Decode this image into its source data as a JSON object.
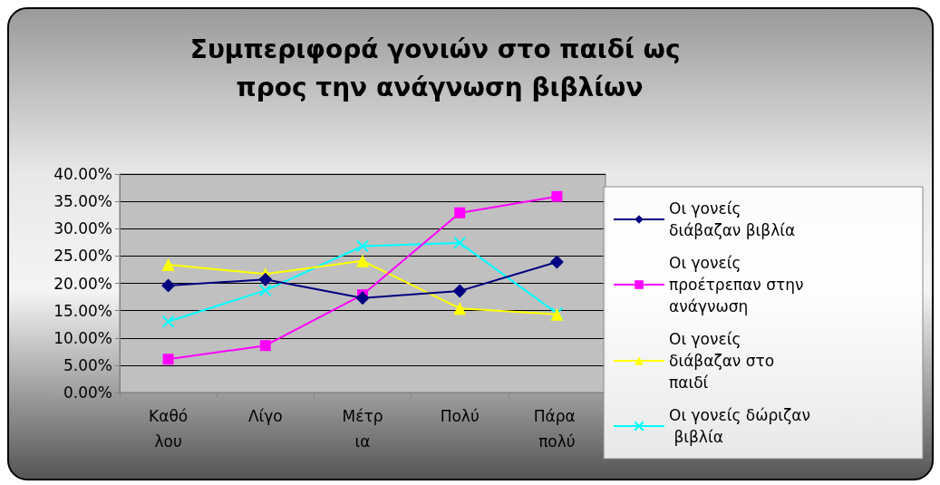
{
  "chart_data": {
    "type": "line",
    "title": "Συμπεριφορά γονιών στο παιδί ως προς την ανάγνωση βιβλίων",
    "categories": [
      "Καθόλου",
      "Λίγο",
      "Μέτρια",
      "Πολύ",
      "Πάρα πολύ"
    ],
    "series": [
      {
        "name": "Οι γονείς διάβαζαν βιβλία",
        "color": "#000080",
        "marker": "diamond",
        "values": [
          19.6,
          20.7,
          17.3,
          18.6,
          23.9
        ]
      },
      {
        "name": "Οι γονείς προέτρεπαν στην ανάγνωση",
        "color": "#ff00ff",
        "marker": "square",
        "values": [
          6.1,
          8.6,
          17.9,
          32.9,
          35.9
        ]
      },
      {
        "name": "Οι γονείς διάβαζαν στο παιδί",
        "color": "#ffff00",
        "marker": "triangle",
        "values": [
          23.4,
          21.7,
          24.1,
          15.4,
          14.3
        ]
      },
      {
        "name": "Οι γονείς δώριζαν βιβλία",
        "color": "#00ffff",
        "marker": "cross",
        "values": [
          13.0,
          18.7,
          26.8,
          27.4,
          14.5
        ]
      }
    ],
    "ylim": [
      0,
      40
    ],
    "yticks": [
      {
        "value": 0,
        "label": "0.00%"
      },
      {
        "value": 5,
        "label": "5.00%"
      },
      {
        "value": 10,
        "label": "10.00%"
      },
      {
        "value": 15,
        "label": "15.00%"
      },
      {
        "value": 20,
        "label": "20.00%"
      },
      {
        "value": 25,
        "label": "25.00%"
      },
      {
        "value": 30,
        "label": "30.00%"
      },
      {
        "value": 35,
        "label": "35.00%"
      },
      {
        "value": 40,
        "label": "40.00%"
      }
    ],
    "grid": "y",
    "legend": "right"
  }
}
